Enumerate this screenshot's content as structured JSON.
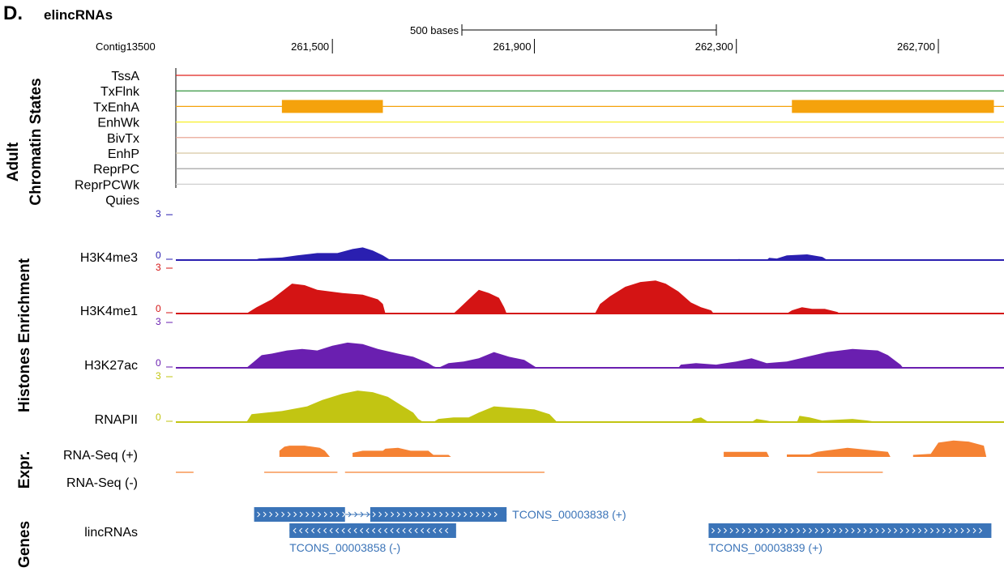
{
  "header": {
    "panel_letter": "D.",
    "title": "elincRNAs"
  },
  "coordinates": {
    "contig": "Contig13500",
    "scale_bar_label": "500 bases",
    "ticks": [
      "261,500",
      "261,900",
      "262,300",
      "262,700"
    ]
  },
  "groups": {
    "chromatin_line1": "Adult",
    "chromatin_line2": "Chromatin States",
    "histones": "Histones Enrichment",
    "expr": "Expr.",
    "genes": "Genes"
  },
  "chromatin_states": [
    {
      "label": "TssA",
      "color": "#e0201c",
      "blocks": []
    },
    {
      "label": "TxFlnk",
      "color": "#1f8a2a",
      "blocks": []
    },
    {
      "label": "TxEnhA",
      "color": "#f5a20c",
      "blocks": [
        [
          261400,
          261600
        ],
        [
          262410,
          262810
        ]
      ]
    },
    {
      "label": "EnhWk",
      "color": "#f7ef2a",
      "blocks": []
    },
    {
      "label": "BivTx",
      "color": "#e69b89",
      "blocks": []
    },
    {
      "label": "EnhP",
      "color": "#d6c6a2",
      "blocks": []
    },
    {
      "label": "ReprPC",
      "color": "#9a9a9a",
      "blocks": []
    },
    {
      "label": "ReprPCWk",
      "color": "#cfcfcf",
      "blocks": []
    },
    {
      "label": "Quies",
      "color": "#ffffff",
      "blocks": []
    }
  ],
  "histone_tracks": [
    {
      "label": "H3K4me3",
      "color": "#2a1fb0",
      "max_label": "3",
      "zero_label": "0",
      "profile": [
        [
          261190,
          0
        ],
        [
          261345,
          0
        ],
        [
          261355,
          0.05
        ],
        [
          261400,
          0.08
        ],
        [
          261430,
          0.15
        ],
        [
          261470,
          0.22
        ],
        [
          261510,
          0.22
        ],
        [
          261540,
          0.35
        ],
        [
          261560,
          0.4
        ],
        [
          261580,
          0.3
        ],
        [
          261600,
          0.15
        ],
        [
          261615,
          0
        ],
        [
          262300,
          0
        ],
        [
          262305,
          0.03
        ],
        [
          262318,
          0
        ],
        [
          262360,
          0
        ],
        [
          262365,
          0.07
        ],
        [
          262380,
          0.05
        ],
        [
          262400,
          0.15
        ],
        [
          262440,
          0.18
        ],
        [
          262470,
          0.1
        ],
        [
          262480,
          0
        ],
        [
          262830,
          0
        ]
      ]
    },
    {
      "label": "H3K4me1",
      "color": "#d41414",
      "max_label": "3",
      "zero_label": "0",
      "profile": [
        [
          261190,
          0
        ],
        [
          261330,
          0
        ],
        [
          261350,
          0.2
        ],
        [
          261380,
          0.45
        ],
        [
          261400,
          0.7
        ],
        [
          261420,
          0.95
        ],
        [
          261445,
          0.9
        ],
        [
          261470,
          0.75
        ],
        [
          261520,
          0.65
        ],
        [
          261560,
          0.6
        ],
        [
          261590,
          0.45
        ],
        [
          261600,
          0.3
        ],
        [
          261605,
          0
        ],
        [
          261740,
          0
        ],
        [
          261750,
          0.15
        ],
        [
          261770,
          0.45
        ],
        [
          261790,
          0.75
        ],
        [
          261810,
          0.65
        ],
        [
          261830,
          0.5
        ],
        [
          261840,
          0.2
        ],
        [
          261845,
          0
        ],
        [
          262020,
          0
        ],
        [
          262030,
          0.3
        ],
        [
          262050,
          0.55
        ],
        [
          262080,
          0.85
        ],
        [
          262110,
          1.0
        ],
        [
          262140,
          1.05
        ],
        [
          262160,
          0.95
        ],
        [
          262185,
          0.7
        ],
        [
          262210,
          0.35
        ],
        [
          262230,
          0.2
        ],
        [
          262250,
          0.1
        ],
        [
          262255,
          0
        ],
        [
          262400,
          0
        ],
        [
          262410,
          0.1
        ],
        [
          262430,
          0.2
        ],
        [
          262450,
          0.15
        ],
        [
          262475,
          0.15
        ],
        [
          262500,
          0.05
        ],
        [
          262505,
          0
        ],
        [
          262830,
          0
        ]
      ]
    },
    {
      "label": "H3K27ac",
      "color": "#6a1fb0",
      "max_label": "3",
      "zero_label": "0",
      "profile": [
        [
          261190,
          0
        ],
        [
          261330,
          0
        ],
        [
          261345,
          0.2
        ],
        [
          261360,
          0.4
        ],
        [
          261380,
          0.45
        ],
        [
          261410,
          0.55
        ],
        [
          261440,
          0.6
        ],
        [
          261470,
          0.55
        ],
        [
          261500,
          0.7
        ],
        [
          261530,
          0.8
        ],
        [
          261560,
          0.75
        ],
        [
          261590,
          0.6
        ],
        [
          261630,
          0.45
        ],
        [
          261660,
          0.35
        ],
        [
          261690,
          0.15
        ],
        [
          261700,
          0.05
        ],
        [
          261710,
          0
        ],
        [
          261730,
          0.15
        ],
        [
          261760,
          0.2
        ],
        [
          261790,
          0.3
        ],
        [
          261820,
          0.5
        ],
        [
          261850,
          0.35
        ],
        [
          261880,
          0.25
        ],
        [
          261900,
          0.05
        ],
        [
          261905,
          0
        ],
        [
          262185,
          0
        ],
        [
          262190,
          0.1
        ],
        [
          262220,
          0.15
        ],
        [
          262260,
          0.1
        ],
        [
          262300,
          0.2
        ],
        [
          262330,
          0.3
        ],
        [
          262360,
          0.15
        ],
        [
          262400,
          0.2
        ],
        [
          262440,
          0.35
        ],
        [
          262480,
          0.5
        ],
        [
          262530,
          0.6
        ],
        [
          262580,
          0.55
        ],
        [
          262600,
          0.4
        ],
        [
          262625,
          0.1
        ],
        [
          262630,
          0
        ],
        [
          262830,
          0
        ]
      ]
    },
    {
      "label": "RNAPII",
      "color": "#c2c512",
      "max_label": "3",
      "zero_label": "0",
      "profile": [
        [
          261190,
          0
        ],
        [
          261330,
          0
        ],
        [
          261340,
          0.25
        ],
        [
          261370,
          0.3
        ],
        [
          261400,
          0.35
        ],
        [
          261450,
          0.5
        ],
        [
          261480,
          0.7
        ],
        [
          261520,
          0.9
        ],
        [
          261550,
          1.0
        ],
        [
          261580,
          0.95
        ],
        [
          261610,
          0.8
        ],
        [
          261640,
          0.5
        ],
        [
          261660,
          0.3
        ],
        [
          261670,
          0.1
        ],
        [
          261680,
          0
        ],
        [
          261700,
          0
        ],
        [
          261710,
          0.1
        ],
        [
          261740,
          0.15
        ],
        [
          261770,
          0.15
        ],
        [
          261790,
          0.3
        ],
        [
          261820,
          0.5
        ],
        [
          261860,
          0.45
        ],
        [
          261900,
          0.4
        ],
        [
          261930,
          0.25
        ],
        [
          261945,
          0
        ],
        [
          262210,
          0
        ],
        [
          262215,
          0.1
        ],
        [
          262230,
          0.15
        ],
        [
          262245,
          0
        ],
        [
          262330,
          0
        ],
        [
          262340,
          0.1
        ],
        [
          262360,
          0.05
        ],
        [
          262375,
          0
        ],
        [
          262420,
          0
        ],
        [
          262425,
          0.2
        ],
        [
          262445,
          0.15
        ],
        [
          262470,
          0.05
        ],
        [
          262530,
          0.1
        ],
        [
          262560,
          0.05
        ],
        [
          262580,
          0
        ],
        [
          262830,
          0
        ]
      ]
    }
  ],
  "expression": {
    "plus_label": "RNA-Seq (+)",
    "minus_label": "RNA-Seq (-)",
    "color": "#f58233",
    "plus_blocks": [
      [
        [
          261395,
          0.3
        ],
        [
          261405,
          0.5
        ],
        [
          261415,
          0.55
        ],
        [
          261445,
          0.55
        ],
        [
          261475,
          0.45
        ],
        [
          261485,
          0.3
        ],
        [
          261495,
          0
        ]
      ],
      [
        [
          261540,
          0.2
        ],
        [
          261560,
          0.3
        ],
        [
          261600,
          0.3
        ],
        [
          261605,
          0.4
        ],
        [
          261630,
          0.45
        ],
        [
          261655,
          0.3
        ],
        [
          261690,
          0.3
        ],
        [
          261700,
          0.1
        ],
        [
          261730,
          0.1
        ],
        [
          261735,
          0
        ]
      ],
      [
        [
          262275,
          0.25
        ],
        [
          262360,
          0.25
        ],
        [
          262365,
          0
        ]
      ],
      [
        [
          262400,
          0.12
        ],
        [
          262445,
          0.12
        ],
        [
          262460,
          0.25
        ],
        [
          262490,
          0.35
        ],
        [
          262520,
          0.45
        ],
        [
          262560,
          0.35
        ],
        [
          262600,
          0.25
        ],
        [
          262605,
          0
        ]
      ],
      [
        [
          262650,
          0.1
        ],
        [
          262685,
          0.15
        ],
        [
          262700,
          0.7
        ],
        [
          262730,
          0.8
        ],
        [
          262760,
          0.75
        ],
        [
          262790,
          0.55
        ],
        [
          262795,
          0
        ]
      ]
    ],
    "minus_lines": [
      [
        261190,
        261225
      ],
      [
        261365,
        261510
      ],
      [
        261525,
        261920
      ],
      [
        262460,
        262590
      ]
    ]
  },
  "genes": {
    "track_label": "lincRNAs",
    "color": "#3b74b8",
    "transcripts": [
      {
        "name": "TCONS_00003838 (+)",
        "strand": "+",
        "start": 261345,
        "end": 261845,
        "exons": [
          [
            261345,
            261525
          ],
          [
            261575,
            261845
          ]
        ],
        "label_pos": "right"
      },
      {
        "name": "TCONS_00003858 (-)",
        "strand": "-",
        "start": 261415,
        "end": 261745,
        "exons": [
          [
            261415,
            261745
          ]
        ],
        "label_pos": "below"
      },
      {
        "name": "TCONS_00003839 (+)",
        "strand": "+",
        "start": 262245,
        "end": 262805,
        "exons": [
          [
            262245,
            262805
          ]
        ],
        "label_pos": "below"
      }
    ]
  }
}
